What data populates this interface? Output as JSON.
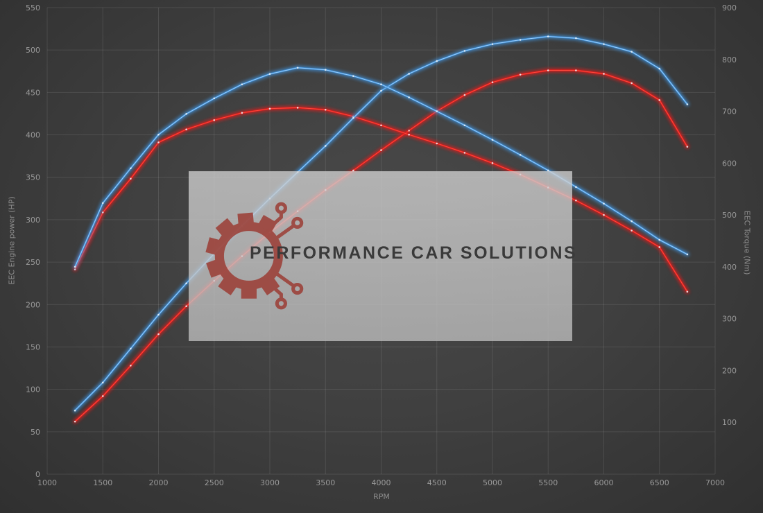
{
  "colors": {
    "background": "#404040",
    "grid": "rgba(255,255,255,0.10)",
    "tick_text": "#9a9a9a",
    "axis_label_text": "#8d8d8d",
    "blue_curve": "#3f8fd6",
    "red_curve": "#dd1f1c",
    "watermark_background": "rgba(200,200,200,0.78)",
    "watermark_logo_red": "#9c4038",
    "watermark_text_color": "#3a3a3a"
  },
  "watermark": {
    "text": "PERFORMANCE CAR SOLUTIONS",
    "logo": "gear-circuit-logo"
  },
  "chart_data": {
    "type": "line",
    "title": "",
    "xlabel": "RPM",
    "ylabel_left": "EEC Engine power (HP)",
    "ylabel_right": "EEC Torque (Nm)",
    "x_range": [
      1000,
      7000
    ],
    "y_left_range": [
      0,
      550
    ],
    "y_right_range": [
      0,
      900
    ],
    "x_ticks": [
      1000,
      1500,
      2000,
      2500,
      3000,
      3500,
      4000,
      4500,
      5000,
      5500,
      6000,
      6500,
      7000
    ],
    "y_left_ticks": [
      0,
      50,
      100,
      150,
      200,
      250,
      300,
      350,
      400,
      450,
      500,
      550
    ],
    "y_right_ticks": [
      100,
      200,
      300,
      400,
      500,
      600,
      700,
      800,
      900
    ],
    "grid": true,
    "legend": false,
    "rpm": [
      1250,
      1500,
      1750,
      2000,
      2250,
      2500,
      2750,
      3000,
      3250,
      3500,
      3750,
      4000,
      4250,
      4500,
      4750,
      5000,
      5250,
      5500,
      5750,
      6000,
      6250,
      6500,
      6750
    ],
    "series": [
      {
        "name": "power-red",
        "axis": "left",
        "unit": "HP",
        "color": "#dd1f1c",
        "core": "#ff4b40",
        "peak": 476,
        "values": [
          62,
          92,
          128,
          165,
          198,
          228,
          257,
          285,
          310,
          335,
          358,
          382,
          405,
          428,
          447,
          462,
          471,
          476,
          476,
          472,
          461,
          441,
          386
        ]
      },
      {
        "name": "torque-red",
        "axis": "right",
        "unit": "Nm",
        "color": "#dd1f1c",
        "core": "#ff4b40",
        "peak": 707,
        "values": [
          395,
          505,
          570,
          640,
          665,
          683,
          697,
          705,
          707,
          703,
          690,
          673,
          655,
          638,
          620,
          600,
          578,
          553,
          528,
          500,
          470,
          438,
          352
        ]
      },
      {
        "name": "power-blue",
        "axis": "left",
        "unit": "HP",
        "color": "#3f8fd6",
        "core": "#9ed1ff",
        "peak": 516,
        "values": [
          75,
          108,
          148,
          188,
          225,
          260,
          293,
          325,
          356,
          387,
          420,
          452,
          472,
          487,
          499,
          507,
          512,
          516,
          514,
          507,
          498,
          478,
          436
        ]
      },
      {
        "name": "torque-blue",
        "axis": "right",
        "unit": "Nm",
        "color": "#3f8fd6",
        "core": "#9ed1ff",
        "peak": 784,
        "values": [
          400,
          523,
          590,
          655,
          695,
          725,
          752,
          772,
          784,
          780,
          768,
          752,
          727,
          700,
          673,
          645,
          616,
          586,
          554,
          522,
          488,
          452,
          424
        ]
      }
    ]
  }
}
